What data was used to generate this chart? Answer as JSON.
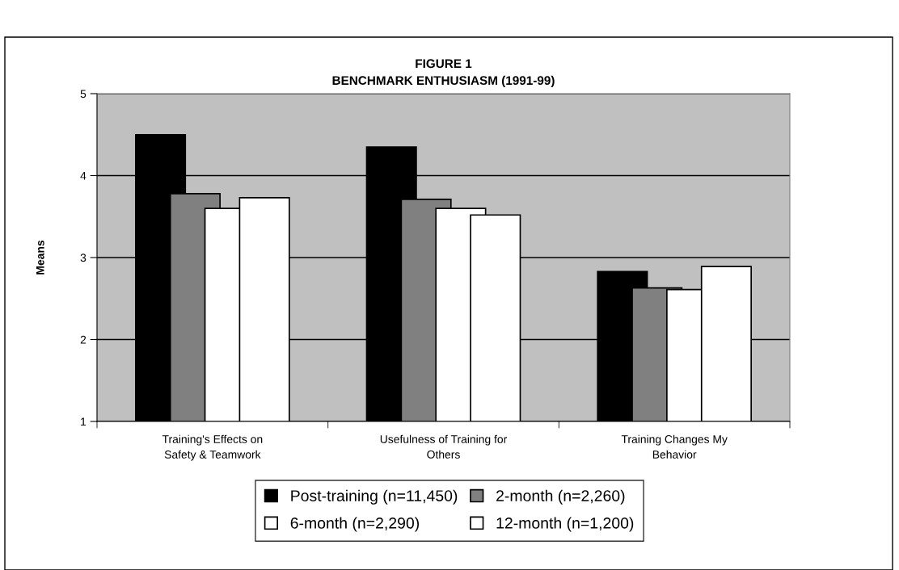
{
  "chart_data": {
    "type": "bar",
    "title": "FIGURE 1\nBENCHMARK ENTHUSIASM (1991-99)",
    "ylabel": "Means",
    "categories": [
      "Training's Effects on\nSafety & Teamwork",
      "Usefulness of Training for\nOthers",
      "Training Changes My\nBehavior"
    ],
    "series": [
      {
        "name": "Post-training (n=11,450)",
        "color": "#000000",
        "values": [
          4.5,
          4.35,
          2.83
        ]
      },
      {
        "name": "2-month (n=2,260)",
        "color": "#808080",
        "values": [
          3.78,
          3.71,
          2.63
        ]
      },
      {
        "name": "6-month (n=2,290)",
        "color": "#ffffff",
        "values": [
          3.6,
          3.6,
          2.61
        ]
      },
      {
        "name": "12-month (n=1,200)",
        "color": "#ffffff",
        "values": [
          3.73,
          3.52,
          2.89
        ]
      }
    ],
    "ylim": [
      1,
      5
    ],
    "yticks": [
      1,
      2,
      3,
      4,
      5
    ],
    "grid": "y",
    "legend": "bottom"
  }
}
